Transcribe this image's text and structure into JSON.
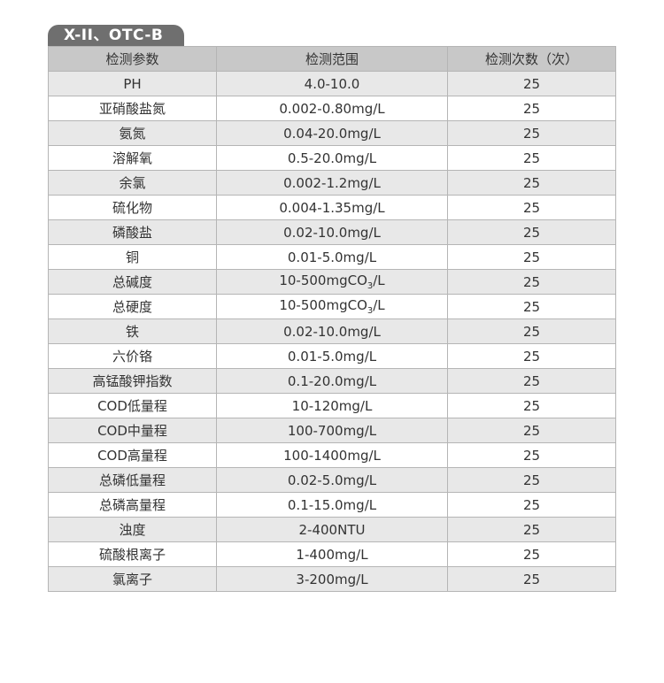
{
  "tab_title": "X-II、OTC-B",
  "headers": [
    "检测参数",
    "检测范围",
    "检测次数（次）"
  ],
  "rows": [
    {
      "param": "PH",
      "range": "4.0-10.0",
      "count": "25"
    },
    {
      "param": "亚硝酸盐氮",
      "range": "0.002-0.80mg/L",
      "count": "25"
    },
    {
      "param": "氨氮",
      "range": "0.04-20.0mg/L",
      "count": "25"
    },
    {
      "param": "溶解氧",
      "range": "0.5-20.0mg/L",
      "count": "25"
    },
    {
      "param": "余氯",
      "range": "0.002-1.2mg/L",
      "count": "25"
    },
    {
      "param": "硫化物",
      "range": "0.004-1.35mg/L",
      "count": "25"
    },
    {
      "param": "磷酸盐",
      "range": "0.02-10.0mg/L",
      "count": "25"
    },
    {
      "param": "铜",
      "range": "0.01-5.0mg/L",
      "count": "25"
    },
    {
      "param": "总碱度",
      "range": "10-500mgCO",
      "range_sub": "3",
      "range_suffix": "/L",
      "count": "25"
    },
    {
      "param": "总硬度",
      "range": "10-500mgCO",
      "range_sub": "3",
      "range_suffix": "/L",
      "count": "25"
    },
    {
      "param": "铁",
      "range": "0.02-10.0mg/L",
      "count": "25"
    },
    {
      "param": "六价铬",
      "range": "0.01-5.0mg/L",
      "count": "25"
    },
    {
      "param": "高锰酸钾指数",
      "range": "0.1-20.0mg/L",
      "count": "25"
    },
    {
      "param": "COD低量程",
      "range": "10-120mg/L",
      "count": "25"
    },
    {
      "param": "COD中量程",
      "range": "100-700mg/L",
      "count": "25"
    },
    {
      "param": "COD高量程",
      "range": "100-1400mg/L",
      "count": "25"
    },
    {
      "param": "总磷低量程",
      "range": "0.02-5.0mg/L",
      "count": "25"
    },
    {
      "param": "总磷高量程",
      "range": "0.1-15.0mg/L",
      "count": "25"
    },
    {
      "param": "浊度",
      "range": "2-400NTU",
      "count": "25"
    },
    {
      "param": "硫酸根离子",
      "range": "1-400mg/L",
      "count": "25"
    },
    {
      "param": "氯离子",
      "range": "3-200mg/L",
      "count": "25"
    }
  ]
}
